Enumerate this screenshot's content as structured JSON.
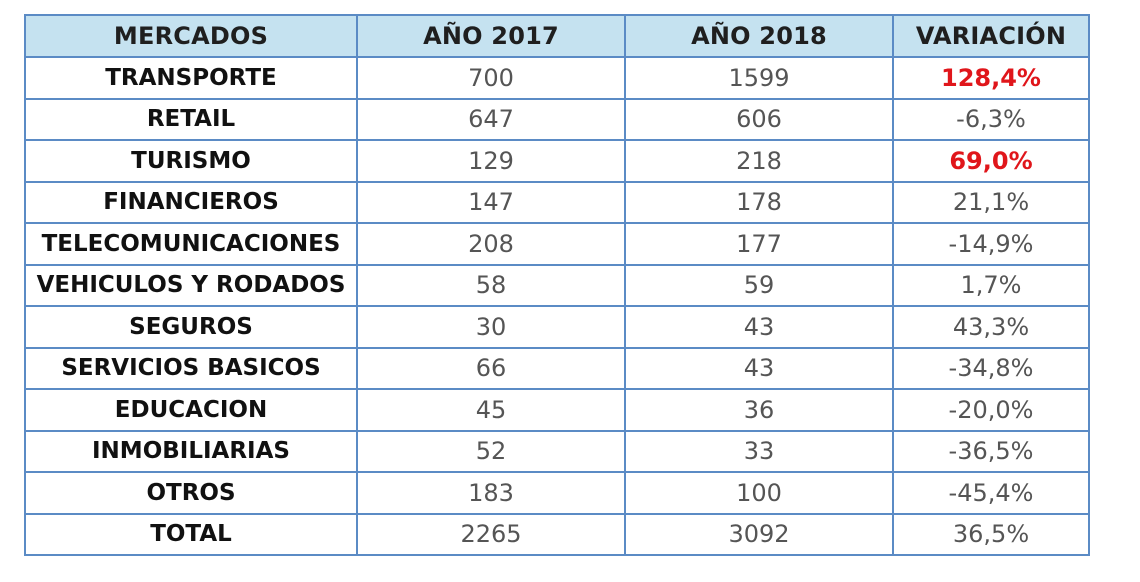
{
  "chart_data": {
    "type": "table",
    "columns": [
      "MERCADOS",
      "AÑO 2017",
      "AÑO 2018",
      "VARIACIÓN"
    ],
    "rows": [
      {
        "market": "TRANSPORTE",
        "y2017": "700",
        "y2018": "1599",
        "variation": "128,4%",
        "highlight": true
      },
      {
        "market": "RETAIL",
        "y2017": "647",
        "y2018": "606",
        "variation": "-6,3%",
        "highlight": false
      },
      {
        "market": "TURISMO",
        "y2017": "129",
        "y2018": "218",
        "variation": "69,0%",
        "highlight": true
      },
      {
        "market": "FINANCIEROS",
        "y2017": "147",
        "y2018": "178",
        "variation": "21,1%",
        "highlight": false
      },
      {
        "market": "TELECOMUNICACIONES",
        "y2017": "208",
        "y2018": "177",
        "variation": "-14,9%",
        "highlight": false
      },
      {
        "market": "VEHICULOS Y RODADOS",
        "y2017": "58",
        "y2018": "59",
        "variation": "1,7%",
        "highlight": false
      },
      {
        "market": "SEGUROS",
        "y2017": "30",
        "y2018": "43",
        "variation": "43,3%",
        "highlight": false
      },
      {
        "market": "SERVICIOS BASICOS",
        "y2017": "66",
        "y2018": "43",
        "variation": "-34,8%",
        "highlight": false
      },
      {
        "market": "EDUCACION",
        "y2017": "45",
        "y2018": "36",
        "variation": "-20,0%",
        "highlight": false
      },
      {
        "market": "INMOBILIARIAS",
        "y2017": "52",
        "y2018": "33",
        "variation": "-36,5%",
        "highlight": false
      },
      {
        "market": "OTROS",
        "y2017": "183",
        "y2018": "100",
        "variation": "-45,4%",
        "highlight": false
      },
      {
        "market": "TOTAL",
        "y2017": "2265",
        "y2018": "3092",
        "variation": "36,5%",
        "highlight": false
      }
    ]
  },
  "colors": {
    "header_bg": "#c5e2f0",
    "border": "#5b8bc5",
    "highlight": "#e0161b"
  }
}
